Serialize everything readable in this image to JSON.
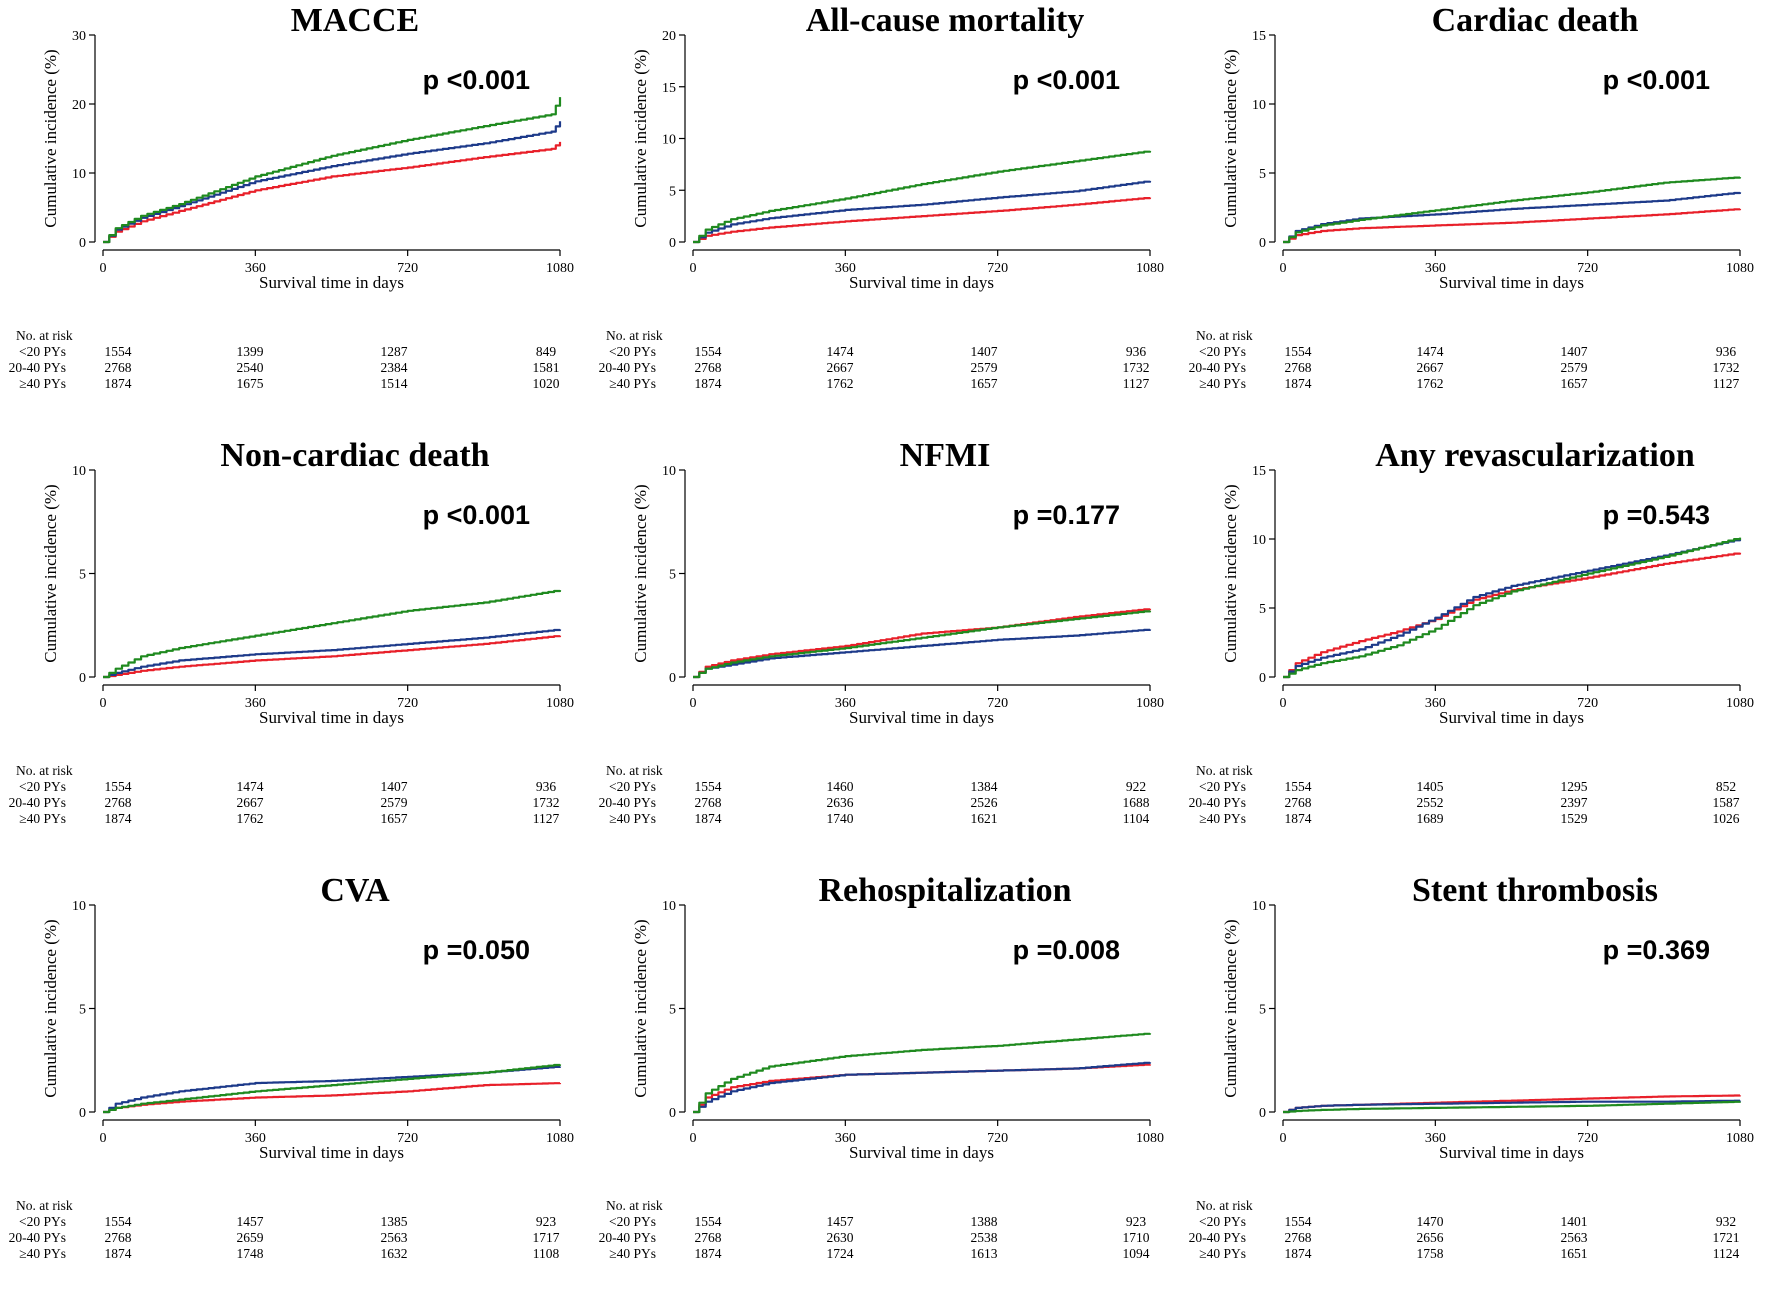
{
  "figure": {
    "x_label": "Survival time in days",
    "y_label": "Cumulative incidence (%)",
    "risk_header": "No. at risk",
    "group_labels": [
      "<20 PYs",
      "20-40 PYs",
      "≥40 PYs"
    ],
    "colors": {
      "<20 PYs": "#e8202a",
      "20-40 PYs": "#1d3a8a",
      "≥40 PYs": "#1f8a1f"
    }
  },
  "chart_data": [
    {
      "type": "line",
      "title": "MACCE",
      "p_value": "p <0.001",
      "xlabel": "Survival time in days",
      "ylabel": "Cumulative incidence (%)",
      "xlim": [
        0,
        1080
      ],
      "x_ticks": [
        "0",
        "360",
        "720",
        "1080"
      ],
      "ylim": [
        0,
        30
      ],
      "y_ticks": [
        "0",
        "10",
        "20",
        "30"
      ],
      "series": [
        {
          "name": "<20 PYs",
          "x": [
            0,
            30,
            90,
            180,
            360,
            540,
            720,
            900,
            1060,
            1080
          ],
          "y": [
            0,
            1.5,
            3.0,
            4.5,
            7.5,
            9.5,
            10.8,
            12.3,
            13.5,
            14.5
          ]
        },
        {
          "name": "20-40 PYs",
          "x": [
            0,
            30,
            90,
            180,
            360,
            540,
            720,
            900,
            1060,
            1080
          ],
          "y": [
            0,
            1.8,
            3.5,
            5.2,
            8.8,
            11.0,
            12.8,
            14.3,
            16.0,
            17.5
          ]
        },
        {
          "name": "≥40 PYs",
          "x": [
            0,
            30,
            90,
            180,
            360,
            540,
            720,
            900,
            1060,
            1080
          ],
          "y": [
            0,
            2.0,
            3.8,
            5.5,
            9.5,
            12.5,
            14.8,
            16.8,
            18.5,
            21.0
          ]
        }
      ],
      "risk": [
        [
          "1554",
          "1399",
          "1287",
          "849"
        ],
        [
          "2768",
          "2540",
          "2384",
          "1581"
        ],
        [
          "1874",
          "1675",
          "1514",
          "1020"
        ]
      ]
    },
    {
      "type": "line",
      "title": "All-cause mortality",
      "p_value": "p <0.001",
      "xlabel": "Survival time in days",
      "ylabel": "Cumulative incidence (%)",
      "xlim": [
        0,
        1080
      ],
      "x_ticks": [
        "0",
        "360",
        "720",
        "1080"
      ],
      "ylim": [
        0,
        20
      ],
      "y_ticks": [
        "0",
        "5",
        "10",
        "15",
        "20"
      ],
      "series": [
        {
          "name": "<20 PYs",
          "x": [
            0,
            30,
            90,
            180,
            360,
            540,
            720,
            900,
            1080
          ],
          "y": [
            0,
            0.6,
            1.0,
            1.4,
            2.0,
            2.5,
            3.0,
            3.6,
            4.3
          ]
        },
        {
          "name": "20-40 PYs",
          "x": [
            0,
            30,
            90,
            180,
            360,
            540,
            720,
            900,
            1080
          ],
          "y": [
            0,
            0.9,
            1.7,
            2.3,
            3.1,
            3.6,
            4.3,
            4.9,
            5.9
          ]
        },
        {
          "name": "≥40 PYs",
          "x": [
            0,
            30,
            90,
            180,
            360,
            540,
            720,
            900,
            1080
          ],
          "y": [
            0,
            1.2,
            2.2,
            3.0,
            4.2,
            5.6,
            6.8,
            7.8,
            8.8
          ]
        }
      ],
      "risk": [
        [
          "1554",
          "1474",
          "1407",
          "936"
        ],
        [
          "2768",
          "2667",
          "2579",
          "1732"
        ],
        [
          "1874",
          "1762",
          "1657",
          "1127"
        ]
      ]
    },
    {
      "type": "line",
      "title": "Cardiac death",
      "p_value": "p <0.001",
      "xlabel": "Survival time in days",
      "ylabel": "Cumulative incidence (%)",
      "xlim": [
        0,
        1080
      ],
      "x_ticks": [
        "0",
        "360",
        "720",
        "1080"
      ],
      "ylim": [
        0,
        15
      ],
      "y_ticks": [
        "0",
        "5",
        "10",
        "15"
      ],
      "series": [
        {
          "name": "<20 PYs",
          "x": [
            0,
            30,
            90,
            180,
            360,
            540,
            720,
            900,
            1080
          ],
          "y": [
            0,
            0.5,
            0.8,
            1.0,
            1.2,
            1.4,
            1.7,
            2.0,
            2.4
          ]
        },
        {
          "name": "20-40 PYs",
          "x": [
            0,
            30,
            90,
            180,
            360,
            540,
            720,
            900,
            1080
          ],
          "y": [
            0,
            0.8,
            1.3,
            1.7,
            2.0,
            2.4,
            2.7,
            3.0,
            3.6
          ]
        },
        {
          "name": "≥40 PYs",
          "x": [
            0,
            30,
            90,
            180,
            360,
            540,
            720,
            900,
            1080
          ],
          "y": [
            0,
            0.7,
            1.2,
            1.6,
            2.3,
            3.0,
            3.6,
            4.3,
            4.7
          ]
        }
      ],
      "risk": [
        [
          "1554",
          "1474",
          "1407",
          "936"
        ],
        [
          "2768",
          "2667",
          "2579",
          "1732"
        ],
        [
          "1874",
          "1762",
          "1657",
          "1127"
        ]
      ]
    },
    {
      "type": "line",
      "title": "Non-cardiac death",
      "p_value": "p <0.001",
      "xlabel": "Survival time in days",
      "ylabel": "Cumulative incidence (%)",
      "xlim": [
        0,
        1080
      ],
      "x_ticks": [
        "0",
        "360",
        "720",
        "1080"
      ],
      "ylim": [
        0,
        10
      ],
      "y_ticks": [
        "0",
        "5",
        "10"
      ],
      "series": [
        {
          "name": "<20 PYs",
          "x": [
            0,
            30,
            90,
            180,
            360,
            540,
            720,
            900,
            1080
          ],
          "y": [
            0,
            0.1,
            0.3,
            0.5,
            0.8,
            1.0,
            1.3,
            1.6,
            2.0
          ]
        },
        {
          "name": "20-40 PYs",
          "x": [
            0,
            30,
            90,
            180,
            360,
            540,
            720,
            900,
            1080
          ],
          "y": [
            0,
            0.2,
            0.5,
            0.8,
            1.1,
            1.3,
            1.6,
            1.9,
            2.3
          ]
        },
        {
          "name": "≥40 PYs",
          "x": [
            0,
            30,
            90,
            180,
            360,
            540,
            720,
            900,
            1080
          ],
          "y": [
            0,
            0.4,
            1.0,
            1.4,
            2.0,
            2.6,
            3.2,
            3.6,
            4.2
          ]
        }
      ],
      "risk": [
        [
          "1554",
          "1474",
          "1407",
          "936"
        ],
        [
          "2768",
          "2667",
          "2579",
          "1732"
        ],
        [
          "1874",
          "1762",
          "1657",
          "1127"
        ]
      ]
    },
    {
      "type": "line",
      "title": "NFMI",
      "p_value": "p =0.177",
      "xlabel": "Survival time in days",
      "ylabel": "Cumulative incidence (%)",
      "xlim": [
        0,
        1080
      ],
      "x_ticks": [
        "0",
        "360",
        "720",
        "1080"
      ],
      "ylim": [
        0,
        10
      ],
      "y_ticks": [
        "0",
        "5",
        "10"
      ],
      "series": [
        {
          "name": "<20 PYs",
          "x": [
            0,
            30,
            90,
            180,
            360,
            540,
            720,
            900,
            1080
          ],
          "y": [
            0,
            0.5,
            0.8,
            1.1,
            1.5,
            2.1,
            2.4,
            2.9,
            3.3
          ]
        },
        {
          "name": "20-40 PYs",
          "x": [
            0,
            30,
            90,
            180,
            360,
            540,
            720,
            900,
            1080
          ],
          "y": [
            0,
            0.4,
            0.6,
            0.9,
            1.2,
            1.5,
            1.8,
            2.0,
            2.3
          ]
        },
        {
          "name": "≥40 PYs",
          "x": [
            0,
            30,
            90,
            180,
            360,
            540,
            720,
            900,
            1080
          ],
          "y": [
            0,
            0.4,
            0.7,
            1.0,
            1.4,
            1.9,
            2.4,
            2.8,
            3.2
          ]
        }
      ],
      "risk": [
        [
          "1554",
          "1460",
          "1384",
          "922"
        ],
        [
          "2768",
          "2636",
          "2526",
          "1688"
        ],
        [
          "1874",
          "1740",
          "1621",
          "1104"
        ]
      ]
    },
    {
      "type": "line",
      "title": "Any revascularization",
      "p_value": "p =0.543",
      "xlabel": "Survival time in days",
      "ylabel": "Cumulative incidence (%)",
      "xlim": [
        0,
        1080
      ],
      "x_ticks": [
        "0",
        "360",
        "720",
        "1080"
      ],
      "ylim": [
        0,
        15
      ],
      "y_ticks": [
        "0",
        "5",
        "10",
        "15"
      ],
      "series": [
        {
          "name": "<20 PYs",
          "x": [
            0,
            30,
            90,
            180,
            270,
            360,
            450,
            540,
            720,
            900,
            1080
          ],
          "y": [
            0,
            1.0,
            1.8,
            2.6,
            3.3,
            4.2,
            5.6,
            6.3,
            7.2,
            8.2,
            9.0
          ]
        },
        {
          "name": "20-40 PYs",
          "x": [
            0,
            30,
            90,
            180,
            270,
            360,
            450,
            540,
            720,
            900,
            1080
          ],
          "y": [
            0,
            0.8,
            1.4,
            2.0,
            3.0,
            4.3,
            5.8,
            6.6,
            7.7,
            8.8,
            10.0
          ]
        },
        {
          "name": "≥40 PYs",
          "x": [
            0,
            30,
            90,
            180,
            270,
            360,
            450,
            540,
            720,
            900,
            1080
          ],
          "y": [
            0,
            0.5,
            1.0,
            1.5,
            2.3,
            3.5,
            5.2,
            6.2,
            7.5,
            8.7,
            10.1
          ]
        }
      ],
      "risk": [
        [
          "1554",
          "1405",
          "1295",
          "852"
        ],
        [
          "2768",
          "2552",
          "2397",
          "1587"
        ],
        [
          "1874",
          "1689",
          "1529",
          "1026"
        ]
      ]
    },
    {
      "type": "line",
      "title": "CVA",
      "p_value": "p =0.050",
      "xlabel": "Survival time in days",
      "ylabel": "Cumulative incidence (%)",
      "xlim": [
        0,
        1080
      ],
      "x_ticks": [
        "0",
        "360",
        "720",
        "1080"
      ],
      "ylim": [
        0,
        10
      ],
      "y_ticks": [
        "0",
        "5",
        "10"
      ],
      "series": [
        {
          "name": "<20 PYs",
          "x": [
            0,
            30,
            90,
            180,
            360,
            540,
            720,
            900,
            1080
          ],
          "y": [
            0,
            0.2,
            0.35,
            0.5,
            0.7,
            0.8,
            1.0,
            1.3,
            1.4
          ]
        },
        {
          "name": "20-40 PYs",
          "x": [
            0,
            30,
            90,
            180,
            360,
            540,
            720,
            900,
            1080
          ],
          "y": [
            0,
            0.4,
            0.7,
            1.0,
            1.4,
            1.5,
            1.7,
            1.9,
            2.2
          ]
        },
        {
          "name": "≥40 PYs",
          "x": [
            0,
            30,
            90,
            180,
            360,
            540,
            720,
            900,
            1080
          ],
          "y": [
            0,
            0.2,
            0.4,
            0.6,
            1.0,
            1.3,
            1.6,
            1.9,
            2.3
          ]
        }
      ],
      "risk": [
        [
          "1554",
          "1457",
          "1385",
          "923"
        ],
        [
          "2768",
          "2659",
          "2563",
          "1717"
        ],
        [
          "1874",
          "1748",
          "1632",
          "1108"
        ]
      ]
    },
    {
      "type": "line",
      "title": "Rehospitalization",
      "p_value": "p =0.008",
      "xlabel": "Survival time in days",
      "ylabel": "Cumulative incidence (%)",
      "xlim": [
        0,
        1080
      ],
      "x_ticks": [
        "0",
        "360",
        "720",
        "1080"
      ],
      "ylim": [
        0,
        10
      ],
      "y_ticks": [
        "0",
        "5",
        "10"
      ],
      "series": [
        {
          "name": "<20 PYs",
          "x": [
            0,
            30,
            90,
            180,
            360,
            540,
            720,
            900,
            1080
          ],
          "y": [
            0,
            0.7,
            1.2,
            1.5,
            1.8,
            1.9,
            2.0,
            2.1,
            2.3
          ]
        },
        {
          "name": "20-40 PYs",
          "x": [
            0,
            30,
            90,
            180,
            360,
            540,
            720,
            900,
            1080
          ],
          "y": [
            0,
            0.5,
            1.0,
            1.4,
            1.8,
            1.9,
            2.0,
            2.1,
            2.4
          ]
        },
        {
          "name": "≥40 PYs",
          "x": [
            0,
            30,
            90,
            180,
            360,
            540,
            720,
            900,
            1080
          ],
          "y": [
            0,
            0.9,
            1.6,
            2.2,
            2.7,
            3.0,
            3.2,
            3.5,
            3.8
          ]
        }
      ],
      "risk": [
        [
          "1554",
          "1457",
          "1388",
          "923"
        ],
        [
          "2768",
          "2630",
          "2538",
          "1710"
        ],
        [
          "1874",
          "1724",
          "1613",
          "1094"
        ]
      ]
    },
    {
      "type": "line",
      "title": "Stent thrombosis",
      "p_value": "p =0.369",
      "xlabel": "Survival time in days",
      "ylabel": "Cumulative incidence (%)",
      "xlim": [
        0,
        1080
      ],
      "x_ticks": [
        "0",
        "360",
        "720",
        "1080"
      ],
      "ylim": [
        0,
        10
      ],
      "y_ticks": [
        "0",
        "5",
        "10"
      ],
      "series": [
        {
          "name": "<20 PYs",
          "x": [
            0,
            30,
            90,
            180,
            360,
            540,
            720,
            900,
            1080
          ],
          "y": [
            0,
            0.2,
            0.3,
            0.35,
            0.45,
            0.55,
            0.65,
            0.75,
            0.8
          ]
        },
        {
          "name": "20-40 PYs",
          "x": [
            0,
            30,
            90,
            180,
            360,
            540,
            720,
            900,
            1080
          ],
          "y": [
            0,
            0.2,
            0.3,
            0.35,
            0.4,
            0.45,
            0.5,
            0.5,
            0.55
          ]
        },
        {
          "name": "≥40 PYs",
          "x": [
            0,
            30,
            90,
            180,
            360,
            540,
            720,
            900,
            1080
          ],
          "y": [
            0,
            0.05,
            0.1,
            0.15,
            0.2,
            0.25,
            0.3,
            0.4,
            0.5
          ]
        }
      ],
      "risk": [
        [
          "1554",
          "1470",
          "1401",
          "932"
        ],
        [
          "2768",
          "2656",
          "2563",
          "1721"
        ],
        [
          "1874",
          "1758",
          "1651",
          "1124"
        ]
      ]
    }
  ]
}
